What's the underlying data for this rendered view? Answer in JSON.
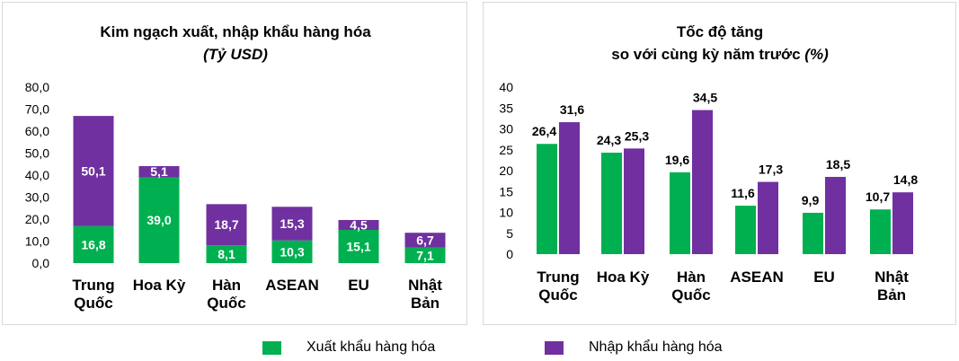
{
  "chart_data": [
    {
      "type": "bar",
      "stacked": true,
      "title": "Kim ngạch xuất, nhập khẩu hàng hóa",
      "subtitle": "(Tỷ USD)",
      "categories": [
        [
          "Trung",
          "Quốc"
        ],
        [
          "Hoa Kỳ"
        ],
        [
          "Hàn",
          "Quốc"
        ],
        [
          "ASEAN"
        ],
        [
          "EU"
        ],
        [
          "Nhật",
          "Bản"
        ]
      ],
      "series": [
        {
          "name": "Xuất khẩu hàng hóa",
          "values": [
            16.8,
            39.0,
            8.1,
            10.3,
            15.1,
            7.1
          ],
          "labels": [
            "16,8",
            "39,0",
            "8,1",
            "10,3",
            "15,1",
            "7,1"
          ]
        },
        {
          "name": "Nhập khẩu hàng hóa",
          "values": [
            50.1,
            5.1,
            18.7,
            15.3,
            4.5,
            6.7
          ],
          "labels": [
            "50,1",
            "5,1",
            "18,7",
            "15,3",
            "4,5",
            "6,7"
          ]
        }
      ],
      "ylim": [
        0,
        80
      ],
      "yticks": [
        "0,0",
        "10,0",
        "20,0",
        "30,0",
        "40,0",
        "50,0",
        "60,0",
        "70,0",
        "80,0"
      ],
      "grid": false
    },
    {
      "type": "bar",
      "stacked": false,
      "title": "Tốc độ tăng",
      "subtitle_main": "so với cùng kỳ năm trước",
      "subtitle_unit": "(%)",
      "categories": [
        [
          "Trung",
          "Quốc"
        ],
        [
          "Hoa Kỳ"
        ],
        [
          "Hàn",
          "Quốc"
        ],
        [
          "ASEAN"
        ],
        [
          "EU"
        ],
        [
          "Nhật",
          "Bản"
        ]
      ],
      "series": [
        {
          "name": "Xuất khẩu hàng hóa",
          "values": [
            26.4,
            24.3,
            19.6,
            11.6,
            9.9,
            10.7
          ],
          "labels": [
            "26,4",
            "24,3",
            "19,6",
            "11,6",
            "9,9",
            "10,7"
          ]
        },
        {
          "name": "Nhập khẩu hàng hóa",
          "values": [
            31.6,
            25.3,
            34.5,
            17.3,
            18.5,
            14.8
          ],
          "labels": [
            "31,6",
            "25,3",
            "34,5",
            "17,3",
            "18,5",
            "14,8"
          ]
        }
      ],
      "ylim": [
        0,
        40
      ],
      "yticks": [
        "0",
        "5",
        "10",
        "15",
        "20",
        "25",
        "30",
        "35",
        "40"
      ],
      "grid": false
    }
  ],
  "legend": {
    "export_label": "Xuất khẩu hàng hóa",
    "import_label": "Nhập khẩu hàng hóa"
  },
  "colors": {
    "export": "#00b050",
    "import": "#7030a0"
  }
}
